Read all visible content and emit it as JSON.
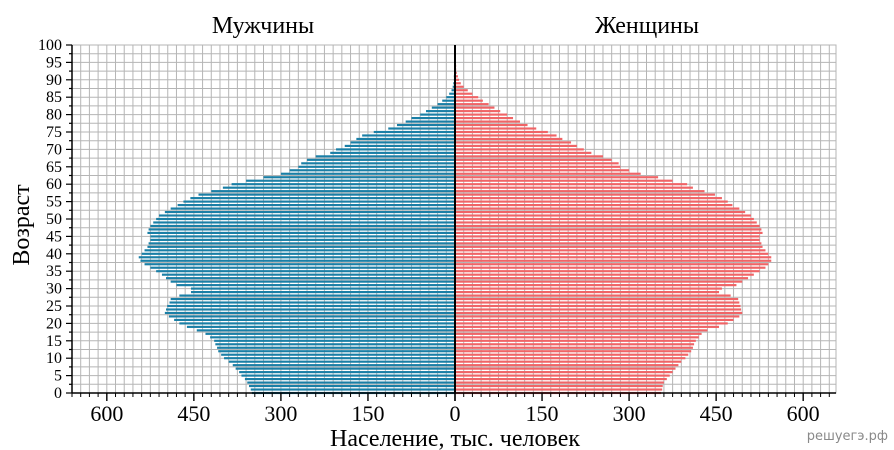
{
  "chart_data": {
    "type": "bar",
    "orientation": "horizontal",
    "style": "population-pyramid",
    "left_title": "Мужчины",
    "right_title": "Женщины",
    "xlabel": "Население, тыс. человек",
    "ylabel": "Возраст",
    "xlim": [
      0,
      660
    ],
    "ylim": [
      0,
      100
    ],
    "x_tick_labels": [
      "600",
      "450",
      "300",
      "150",
      "0",
      "150",
      "300",
      "450",
      "600"
    ],
    "y_tick_labels": [
      "0",
      "5",
      "10",
      "15",
      "20",
      "25",
      "30",
      "35",
      "40",
      "45",
      "50",
      "55",
      "60",
      "65",
      "70",
      "75",
      "80",
      "85",
      "90",
      "95",
      "100"
    ],
    "grid": true,
    "ages": [
      0,
      1,
      2,
      3,
      4,
      5,
      6,
      7,
      8,
      9,
      10,
      11,
      12,
      13,
      14,
      15,
      16,
      17,
      18,
      19,
      20,
      21,
      22,
      23,
      24,
      25,
      26,
      27,
      28,
      29,
      30,
      31,
      32,
      33,
      34,
      35,
      36,
      37,
      38,
      39,
      40,
      41,
      42,
      43,
      44,
      45,
      46,
      47,
      48,
      49,
      50,
      51,
      52,
      53,
      54,
      55,
      56,
      57,
      58,
      59,
      60,
      61,
      62,
      63,
      64,
      65,
      66,
      67,
      68,
      69,
      70,
      71,
      72,
      73,
      74,
      75,
      76,
      77,
      78,
      79,
      80,
      81,
      82,
      83,
      84,
      85,
      86,
      87,
      88,
      89,
      90,
      91,
      92,
      93,
      94,
      95,
      96,
      97,
      98,
      99,
      100
    ],
    "series": [
      {
        "name": "Мужчины",
        "color": "#1a7fa6",
        "values": [
          350,
          352,
          355,
          358,
          362,
          368,
          372,
          378,
          383,
          390,
          398,
          403,
          408,
          410,
          413,
          415,
          422,
          430,
          445,
          462,
          475,
          484,
          493,
          500,
          498,
          496,
          492,
          490,
          475,
          455,
          455,
          480,
          490,
          498,
          505,
          515,
          525,
          535,
          542,
          545,
          540,
          535,
          530,
          528,
          525,
          525,
          530,
          528,
          525,
          520,
          515,
          510,
          500,
          490,
          478,
          468,
          456,
          442,
          420,
          400,
          385,
          360,
          330,
          300,
          285,
          270,
          265,
          255,
          240,
          215,
          205,
          190,
          180,
          170,
          160,
          140,
          115,
          100,
          85,
          75,
          60,
          50,
          40,
          30,
          22,
          15,
          10,
          6,
          4,
          3,
          2,
          2,
          1,
          1,
          1,
          1,
          0,
          0,
          0,
          0,
          0
        ]
      },
      {
        "name": "Женщины",
        "color": "#f06466",
        "values": [
          355,
          357,
          358,
          360,
          365,
          370,
          375,
          380,
          385,
          390,
          397,
          402,
          407,
          410,
          412,
          415,
          420,
          425,
          435,
          455,
          470,
          480,
          490,
          495,
          493,
          492,
          490,
          488,
          475,
          455,
          460,
          485,
          495,
          505,
          515,
          525,
          535,
          540,
          545,
          545,
          540,
          535,
          530,
          528,
          525,
          525,
          530,
          528,
          525,
          520,
          515,
          510,
          500,
          490,
          478,
          470,
          460,
          448,
          430,
          410,
          400,
          375,
          350,
          320,
          300,
          285,
          282,
          270,
          255,
          235,
          222,
          210,
          200,
          185,
          175,
          160,
          140,
          125,
          112,
          100,
          90,
          78,
          68,
          58,
          48,
          40,
          30,
          22,
          15,
          10,
          7,
          5,
          3,
          2,
          2,
          1,
          1,
          0,
          0,
          0,
          0
        ]
      }
    ]
  },
  "watermark": "решуегэ.рф"
}
